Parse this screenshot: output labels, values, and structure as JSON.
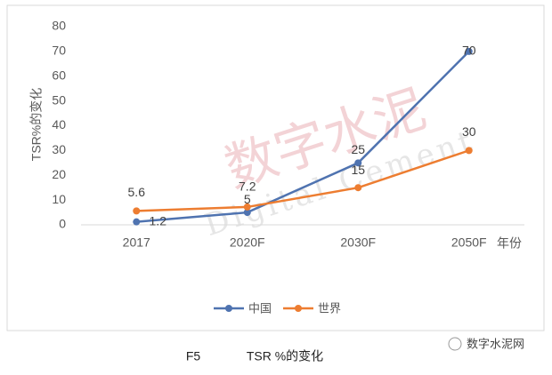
{
  "chart_data": {
    "type": "line",
    "categories": [
      "2017",
      "2020F",
      "2030F",
      "2050F"
    ],
    "series": [
      {
        "name": "中国",
        "color": "#4f73b0",
        "values": [
          1.2,
          5,
          25,
          70
        ]
      },
      {
        "name": "世界",
        "color": "#ed7d31",
        "values": [
          5.6,
          7.2,
          15,
          30
        ]
      }
    ],
    "ylim": [
      0,
      80
    ],
    "yticks": [
      0,
      10,
      20,
      30,
      40,
      50,
      60,
      70,
      80
    ],
    "y_label": "TSR%的变化",
    "x_label": "年份",
    "legend": "bottom",
    "grid": false
  },
  "caption": {
    "number": "F5",
    "text": "TSR %的变化"
  },
  "watermark": {
    "text": "数字水泥",
    "subtext": "Digital Cement"
  },
  "source_badge": "数字水泥网"
}
